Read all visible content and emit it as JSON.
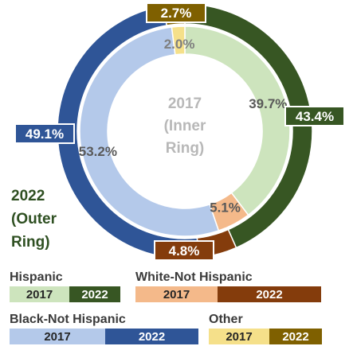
{
  "chart_data": {
    "type": "donut",
    "center_label": [
      "2017",
      "(Inner",
      "Ring)"
    ],
    "outer_note": [
      "2022",
      "(Outer",
      "Ring)"
    ],
    "categories": [
      "Hispanic",
      "White-Not Hispanic",
      "Black-Not Hispanic",
      "Other"
    ],
    "series": [
      {
        "name": "2017",
        "ring": "inner",
        "values": [
          39.7,
          5.1,
          53.2,
          2.0
        ],
        "labels": [
          "39.7%",
          "5.1%",
          "53.2%",
          "2.0%"
        ]
      },
      {
        "name": "2022",
        "ring": "outer",
        "values": [
          43.4,
          4.8,
          49.1,
          2.7
        ],
        "labels": [
          "43.4%",
          "4.8%",
          "49.1%",
          "2.7%"
        ]
      }
    ],
    "colors": {
      "inner": [
        "#cde4bd",
        "#f4b98a",
        "#b4c9ea",
        "#f5e08a"
      ],
      "outer": [
        "#375623",
        "#843c0c",
        "#2f5597",
        "#7f6000"
      ],
      "inner_label_text": [
        "#595959",
        "#595959",
        "#595959",
        "#7f7f7f"
      ]
    },
    "legend": [
      {
        "title": "Hispanic",
        "y2017": "2017",
        "y2022": "2022"
      },
      {
        "title": "White-Not Hispanic",
        "y2017": "2017",
        "y2022": "2022"
      },
      {
        "title": "Black-Not Hispanic",
        "y2017": "2017",
        "y2022": "2022"
      },
      {
        "title": "Other",
        "y2017": "2017",
        "y2022": "2022"
      }
    ]
  }
}
